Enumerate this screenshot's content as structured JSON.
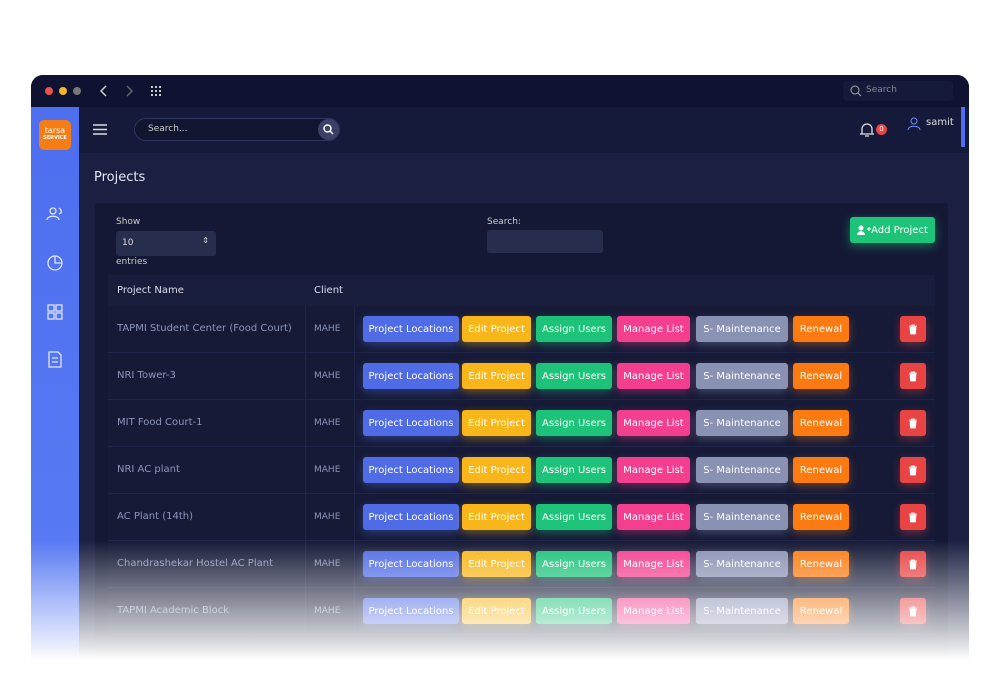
{
  "browser": {
    "search": "Search"
  },
  "logo": {
    "name": "tarsa",
    "tagline": "SERVICE"
  },
  "header": {
    "search_placeholder": "Search...",
    "notifications": "0",
    "user": "samit"
  },
  "page_title": "Projects",
  "controls": {
    "show": "Show",
    "page_size": "10",
    "entries": "entries",
    "search_label": "Search:",
    "add_button": "Add Project"
  },
  "table": {
    "columns": [
      "Project Name",
      "Client"
    ],
    "actions": [
      "Project Locations",
      "Edit Project",
      "Assign Users",
      "Manage List",
      "S- Maintenance",
      "Renewal"
    ],
    "rows": [
      [
        "TAPMI Student Center (Food Court)",
        "MAHE"
      ],
      [
        "NRI Tower-3",
        "MAHE"
      ],
      [
        "MIT Food Court-1",
        "MAHE"
      ],
      [
        "NRI AC plant",
        "MAHE"
      ],
      [
        "AC Plant (14th)",
        "MAHE"
      ],
      [
        "Chandrashekar Hostel AC Plant",
        "MAHE"
      ],
      [
        "TAPMI Academic Block",
        "MAHE"
      ]
    ]
  }
}
